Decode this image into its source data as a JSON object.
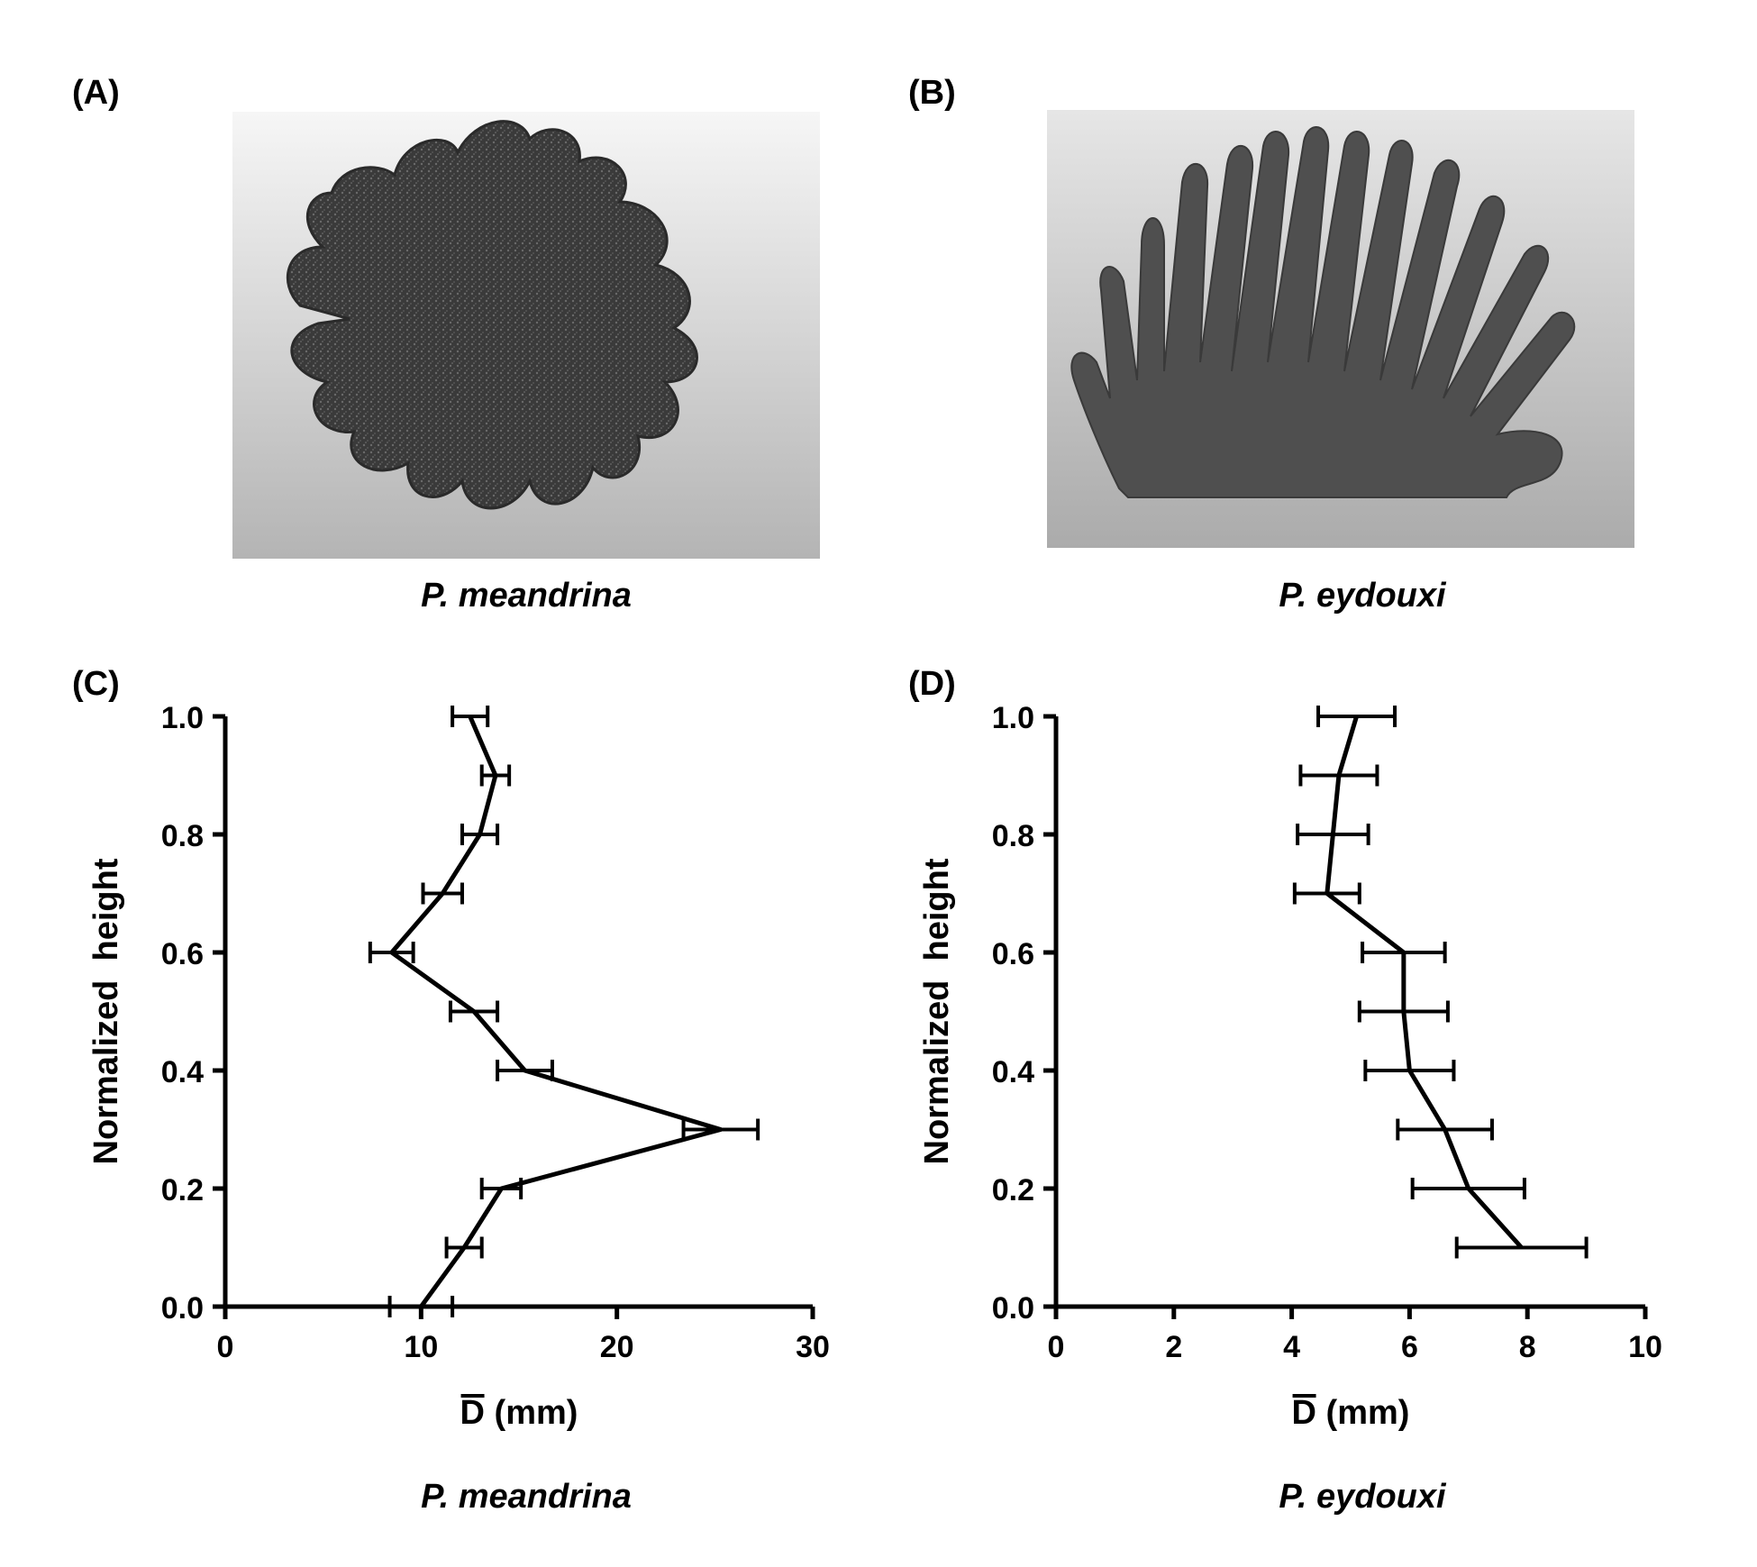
{
  "panels": {
    "a": {
      "label": "(A)",
      "caption": "P. meandrina"
    },
    "b": {
      "label": "(B)",
      "caption": "P. eydouxi"
    },
    "c": {
      "label": "(C)",
      "caption": "P. meandrina"
    },
    "d": {
      "label": "(D)",
      "caption": "P. eydouxi"
    }
  },
  "colors": {
    "line": "#000000",
    "coral": "#4a4a4a"
  },
  "chart_data": [
    {
      "type": "line",
      "panel": "C",
      "title": "",
      "xlabel": "D (mm)",
      "ylabel": "Normalized  height",
      "xlim": [
        0,
        30
      ],
      "ylim": [
        0.0,
        1.0
      ],
      "xticks": [
        "0",
        "10",
        "20",
        "30"
      ],
      "yticks": [
        "0.0",
        "0.2",
        "0.4",
        "0.6",
        "0.8",
        "1.0"
      ],
      "grid": false,
      "orientation": "profile",
      "series": [
        {
          "x": [
            10.0,
            12.2,
            14.1,
            25.3,
            15.3,
            12.7,
            8.5,
            11.1,
            13.0,
            13.8,
            12.5
          ],
          "y": [
            0.0,
            0.1,
            0.2,
            0.3,
            0.4,
            0.5,
            0.6,
            0.7,
            0.8,
            0.9,
            1.0
          ],
          "x_err": [
            1.6,
            0.9,
            1.0,
            1.9,
            1.4,
            1.2,
            1.1,
            1.0,
            0.9,
            0.7,
            0.9
          ]
        }
      ]
    },
    {
      "type": "line",
      "panel": "D",
      "title": "",
      "xlabel": "D (mm)",
      "ylabel": "Normalized  height",
      "xlim": [
        0,
        10
      ],
      "ylim": [
        0.0,
        1.0
      ],
      "xticks": [
        "0",
        "2",
        "4",
        "6",
        "8",
        "10"
      ],
      "yticks": [
        "0.0",
        "0.2",
        "0.4",
        "0.6",
        "0.8",
        "1.0"
      ],
      "grid": false,
      "orientation": "profile",
      "series": [
        {
          "x": [
            7.9,
            7.0,
            6.6,
            6.0,
            5.9,
            5.9,
            4.6,
            4.7,
            4.8,
            5.1
          ],
          "y": [
            0.1,
            0.2,
            0.3,
            0.4,
            0.5,
            0.6,
            0.7,
            0.8,
            0.9,
            1.0
          ],
          "x_err": [
            1.1,
            0.95,
            0.8,
            0.75,
            0.75,
            0.7,
            0.55,
            0.6,
            0.65,
            0.65
          ]
        }
      ]
    }
  ]
}
